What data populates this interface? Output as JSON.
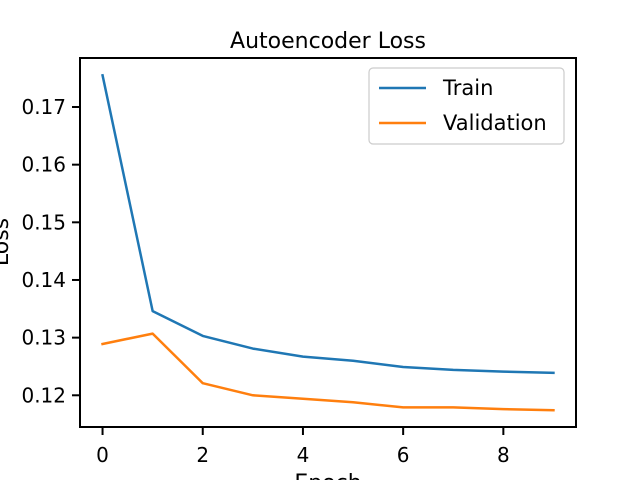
{
  "chart_data": {
    "type": "line",
    "title": "Autoencoder Loss",
    "xlabel": "Epoch",
    "ylabel": "Loss",
    "xlim": [
      -0.45,
      9.45
    ],
    "ylim": [
      0.1145,
      0.1785
    ],
    "xticks": [
      0,
      2,
      4,
      6,
      8
    ],
    "yticks": [
      0.12,
      0.13,
      0.14,
      0.15,
      0.16,
      0.17
    ],
    "grid": false,
    "legend": "top-right",
    "x": [
      0,
      1,
      2,
      3,
      4,
      5,
      6,
      7,
      8,
      9
    ],
    "series": [
      {
        "name": "Train",
        "color": "#1f77b4",
        "values": [
          0.1755,
          0.1346,
          0.1303,
          0.1281,
          0.1267,
          0.126,
          0.1249,
          0.1244,
          0.1241,
          0.1239
        ]
      },
      {
        "name": "Validation",
        "color": "#ff7f0e",
        "values": [
          0.1289,
          0.1307,
          0.1221,
          0.12,
          0.1194,
          0.1188,
          0.1179,
          0.1179,
          0.1176,
          0.1174
        ]
      }
    ]
  }
}
